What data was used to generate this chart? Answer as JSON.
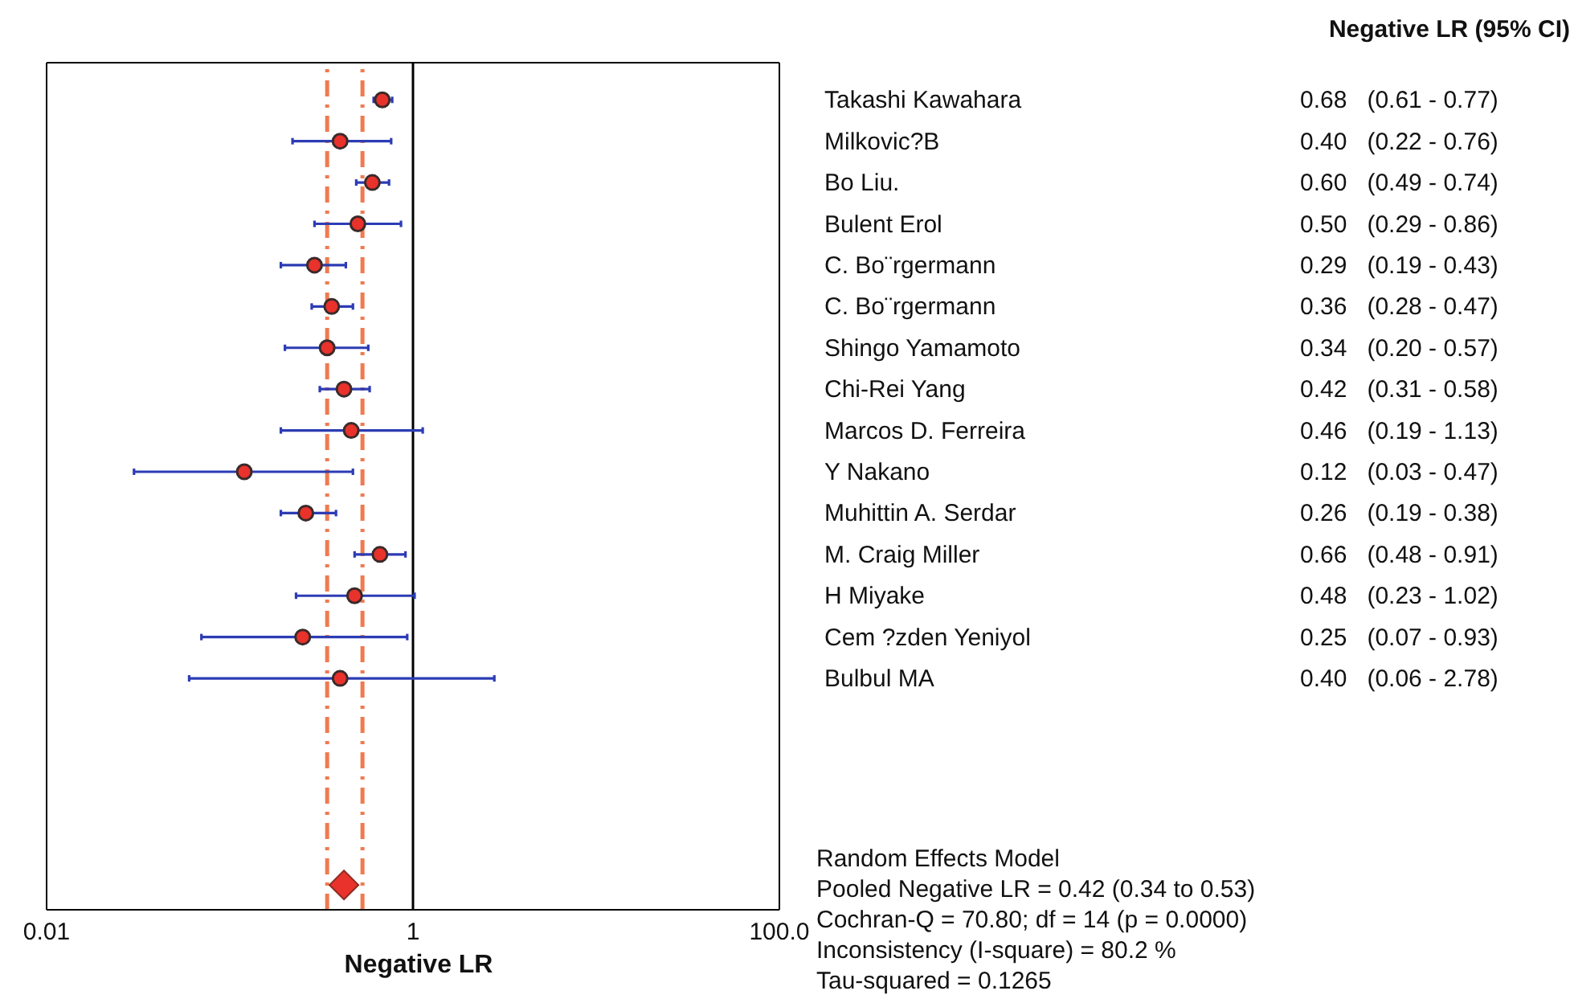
{
  "chart_data": {
    "type": "scatter",
    "orientation": "horizontal",
    "title": "Negative LR (95% CI)",
    "xlabel": "Negative LR",
    "log": "x",
    "grid": false,
    "legend": false,
    "categories": [
      "Takashi Kawahara",
      "Milkovic?B",
      "Bo Liu.",
      "Bulent Erol",
      "C. Bo¨rgermann",
      "C. Bo¨rgermann",
      "Shingo Yamamoto",
      "Chi-Rei Yang",
      "Marcos D. Ferreira",
      "Y Nakano",
      "Muhittin A. Serdar",
      "M. Craig Miller",
      "H Miyake",
      "Cem ?zden Yeniyol",
      "Bulbul MA",
      null,
      null,
      null,
      null,
      null
    ],
    "xlim": [
      0.01,
      100
    ],
    "xticks": [
      0.01,
      1,
      {
        "value": 100,
        "label": "100.0"
      }
    ],
    "series": [
      {
        "color": "#e8322b",
        "marker": "circle",
        "values": [
          0.68,
          0.4,
          0.6,
          0.5,
          0.29,
          0.36,
          0.34,
          0.42,
          0.46,
          0.12,
          0.26,
          0.66,
          0.48,
          0.25,
          0.4,
          null,
          null,
          null,
          null,
          null
        ],
        "errors": [
          [
            0.61,
            0.77
          ],
          [
            0.22,
            0.76
          ],
          [
            0.49,
            0.74
          ],
          [
            0.29,
            0.86
          ],
          [
            0.19,
            0.43
          ],
          [
            0.28,
            0.47
          ],
          [
            0.2,
            0.57
          ],
          [
            0.31,
            0.58
          ],
          [
            0.19,
            1.13
          ],
          [
            0.03,
            0.47
          ],
          [
            0.19,
            0.38
          ],
          [
            0.48,
            0.91
          ],
          [
            0.23,
            1.02
          ],
          [
            0.07,
            0.93
          ],
          [
            0.06,
            2.78
          ],
          null,
          null,
          null,
          null,
          null
        ],
        "value_labels": [
          "0.68   (0.61 - 0.77)",
          "0.40   (0.22 - 0.76)",
          "0.60   (0.49 - 0.74)",
          "0.50   (0.29 - 0.86)",
          "0.29   (0.19 - 0.43)",
          "0.36   (0.28 - 0.47)",
          "0.34   (0.20 - 0.57)",
          "0.42   (0.31 - 0.58)",
          "0.46   (0.19 - 1.13)",
          "0.12   (0.03 - 0.47)",
          "0.26   (0.19 - 0.38)",
          "0.66   (0.48 - 0.91)",
          "0.48   (0.23 - 1.02)",
          "0.25   (0.07 - 0.93)",
          "0.40   (0.06 - 2.78)",
          null,
          null,
          null,
          null,
          null
        ]
      },
      {
        "color": "#e8322b",
        "marker": "diamond",
        "values": [
          null,
          null,
          null,
          null,
          null,
          null,
          null,
          null,
          null,
          null,
          null,
          null,
          null,
          null,
          null,
          null,
          null,
          null,
          null,
          0.42
        ]
      }
    ],
    "ref_lines": [
      {
        "axis": "x",
        "value": 1,
        "color": "#000000",
        "line_style": "solid"
      },
      {
        "axis": "x",
        "value": 0.34,
        "color": "#f07a50",
        "line_style": "dashed"
      },
      {
        "axis": "x",
        "value": 0.53,
        "color": "#f07a50",
        "line_style": "dashed"
      }
    ],
    "annotations": [
      "Random Effects Model",
      "Pooled Negative LR = 0.42 (0.34 to 0.53)",
      "Cochran-Q = 70.80; df = 14 (p = 0.0000)",
      "Inconsistency (I-square) = 80.2 %",
      "Tau-squared = 0.1265"
    ]
  }
}
